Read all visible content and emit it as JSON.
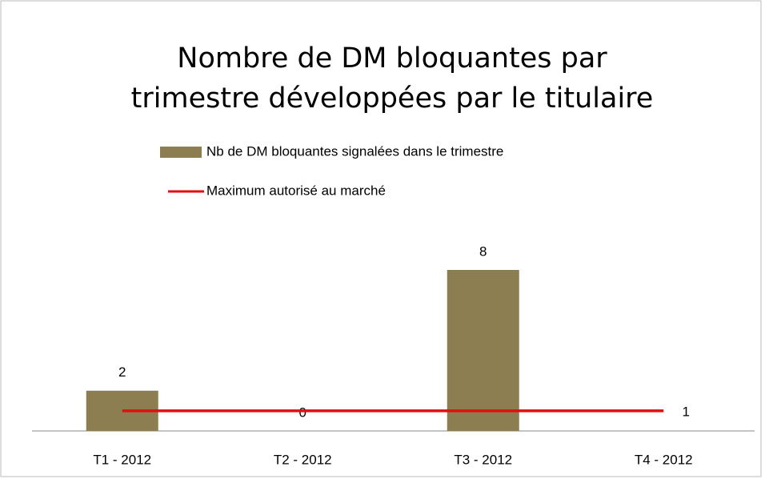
{
  "chart_data": {
    "type": "bar-line",
    "title": [
      "Nombre de DM bloquantes par",
      "trimestre développées par le titulaire"
    ],
    "categories": [
      "T1 - 2012",
      "T2 - 2012",
      "T3 - 2012",
      "T4 - 2012"
    ],
    "series": [
      {
        "name": "Nb de DM bloquantes signalées dans le trimestre",
        "type": "bar",
        "color": "#8c7e50",
        "values": [
          2,
          0,
          8,
          null
        ]
      },
      {
        "name": "Maximum autorisé au marché",
        "type": "line",
        "color": "#e01010",
        "values": [
          1,
          1,
          1,
          1
        ],
        "value_labels": [
          null,
          null,
          null,
          "1"
        ]
      }
    ],
    "legend": "top"
  }
}
